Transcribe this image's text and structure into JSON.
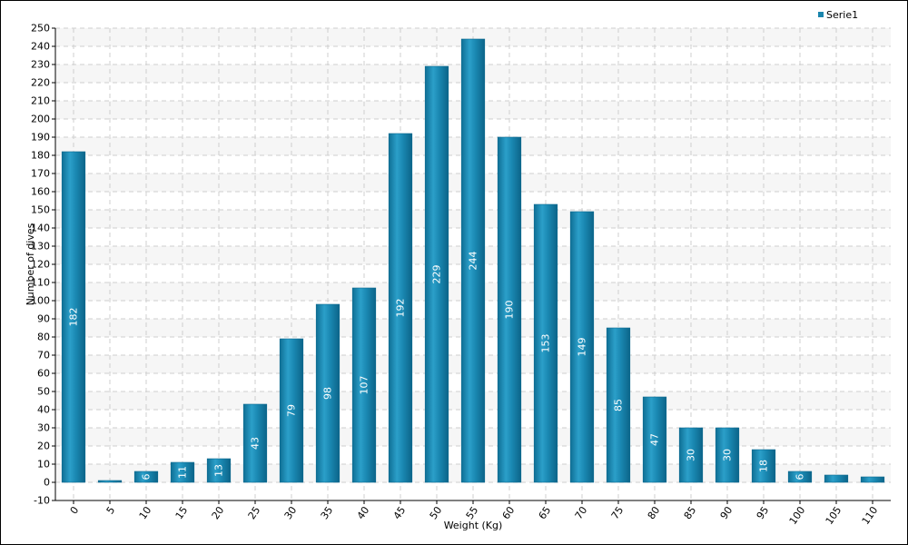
{
  "chart_data": {
    "type": "bar",
    "xlabel": "Weight (Kg)",
    "ylabel": "Number of dives",
    "ylim": [
      -10,
      250
    ],
    "ytick_step": 10,
    "grid": true,
    "legend_position": "top-right",
    "categories": [
      "0",
      "5",
      "10",
      "15",
      "20",
      "25",
      "30",
      "35",
      "40",
      "45",
      "50",
      "55",
      "60",
      "65",
      "70",
      "75",
      "80",
      "85",
      "90",
      "95",
      "100",
      "105",
      "110"
    ],
    "series": [
      {
        "name": "Serie1",
        "color": "#1a85ad",
        "values": [
          182,
          1,
          6,
          11,
          13,
          43,
          79,
          98,
          107,
          192,
          229,
          244,
          190,
          153,
          149,
          85,
          47,
          30,
          30,
          18,
          6,
          4,
          3
        ],
        "labels": [
          "182",
          "",
          "6",
          "11",
          "13",
          "43",
          "79",
          "98",
          "107",
          "192",
          "229",
          "244",
          "190",
          "153",
          "149",
          "85",
          "47",
          "30",
          "30",
          "18",
          "6",
          "",
          ""
        ]
      }
    ]
  }
}
